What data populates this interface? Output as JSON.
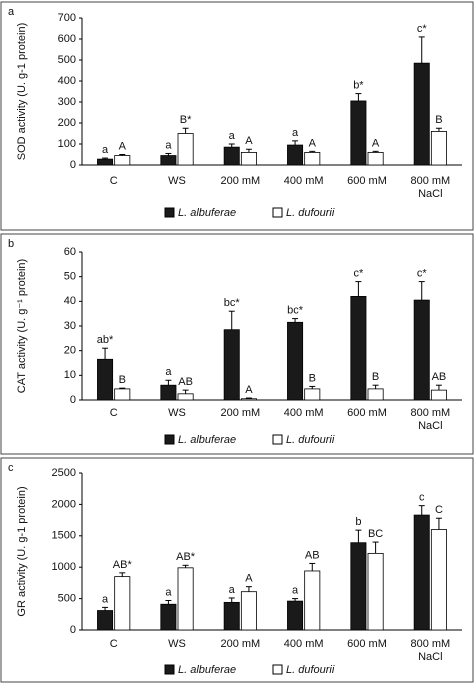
{
  "charts": [
    {
      "type": "bar",
      "panel": "a",
      "ylabel": "SOD activity (U. g-1 protein)",
      "categories": [
        "C",
        "WS",
        "200 mM",
        "400 mM",
        "600 mM",
        "800 mM"
      ],
      "xlabel": "NaCl",
      "ylim": [
        0,
        700
      ],
      "yticks": [
        0,
        100,
        200,
        300,
        400,
        500,
        600,
        700
      ],
      "series": [
        {
          "name": "L. albuferae",
          "color": "#1a1a1a",
          "values": [
            28,
            45,
            85,
            95,
            305,
            485
          ],
          "errors": [
            5,
            10,
            15,
            20,
            35,
            125
          ],
          "labels": [
            "a",
            "a",
            "a",
            "a",
            "b*",
            "c*"
          ]
        },
        {
          "name": "L. dufourii",
          "color": "#ffffff",
          "values": [
            45,
            150,
            60,
            60,
            60,
            160
          ],
          "errors": [
            5,
            25,
            15,
            5,
            5,
            15
          ],
          "labels": [
            "A",
            "B*",
            "A",
            "A",
            "A",
            "B"
          ]
        }
      ]
    },
    {
      "type": "bar",
      "panel": "b",
      "ylabel": "CAT activity (U. g⁻¹ protein)",
      "categories": [
        "C",
        "WS",
        "200 mM",
        "400 mM",
        "600 mM",
        "800 mM"
      ],
      "xlabel": "NaCl",
      "ylim": [
        0,
        60
      ],
      "yticks": [
        0,
        10,
        20,
        30,
        40,
        50,
        60
      ],
      "series": [
        {
          "name": "L. albuferae",
          "color": "#1a1a1a",
          "values": [
            16.5,
            6,
            28.5,
            31.5,
            42,
            40.5
          ],
          "errors": [
            4.5,
            2,
            7.5,
            1.5,
            6,
            7.5
          ],
          "labels": [
            "ab*",
            "a",
            "bc*",
            "bc*",
            "c*",
            "c*"
          ]
        },
        {
          "name": "L. dufourii",
          "color": "#ffffff",
          "values": [
            4.5,
            2.5,
            0.5,
            4.5,
            4.5,
            4
          ],
          "errors": [
            0.3,
            1.5,
            0.3,
            1,
            1.5,
            2
          ],
          "labels": [
            "B",
            "AB",
            "A",
            "B",
            "B",
            "AB"
          ]
        }
      ]
    },
    {
      "type": "bar",
      "panel": "c",
      "ylabel": "GR activity (U. g-1 protein)",
      "categories": [
        "C",
        "WS",
        "200 mM",
        "400 mM",
        "600 mM",
        "800 mM"
      ],
      "xlabel": "NaCl",
      "ylim": [
        0,
        2500
      ],
      "yticks": [
        0,
        500,
        1000,
        1500,
        2000,
        2500
      ],
      "series": [
        {
          "name": "L. albuferae",
          "color": "#1a1a1a",
          "values": [
            310,
            410,
            440,
            460,
            1390,
            1830
          ],
          "errors": [
            50,
            60,
            70,
            40,
            200,
            150
          ],
          "labels": [
            "a",
            "a",
            "a",
            "a",
            "b",
            "c"
          ]
        },
        {
          "name": "L. dufourii",
          "color": "#ffffff",
          "values": [
            850,
            990,
            610,
            940,
            1220,
            1600
          ],
          "errors": [
            60,
            40,
            80,
            120,
            180,
            180
          ],
          "labels": [
            "AB*",
            "AB*",
            "A",
            "AB",
            "BC",
            "C"
          ]
        }
      ]
    }
  ]
}
